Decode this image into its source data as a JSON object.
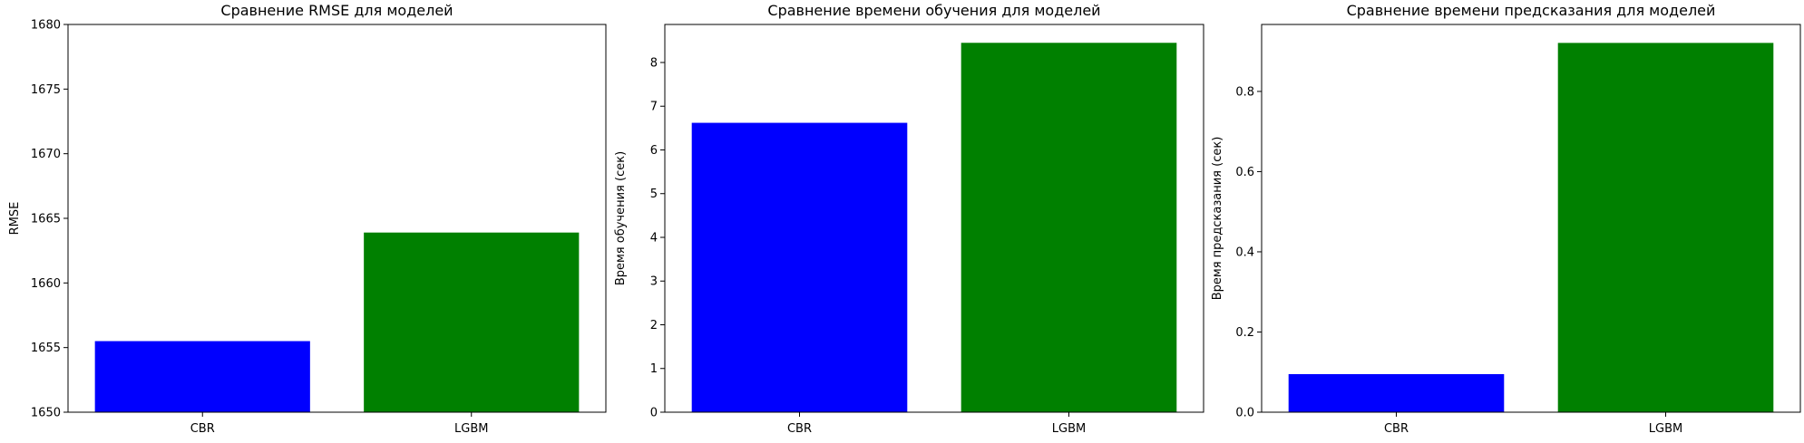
{
  "chart_data": [
    {
      "type": "bar",
      "title": "Сравнение RMSE для моделей",
      "xlabel": "",
      "ylabel": "RMSE",
      "categories": [
        "CBR",
        "LGBM"
      ],
      "values": [
        1655.5,
        1663.9
      ],
      "colors": [
        "#0000ff",
        "#008000"
      ],
      "ylim": [
        1650,
        1680
      ],
      "yticks": [
        1650,
        1655,
        1660,
        1665,
        1670,
        1675,
        1680
      ],
      "yticks_labels": [
        "1650",
        "1655",
        "1660",
        "1665",
        "1670",
        "1675",
        "1680"
      ],
      "grid": false
    },
    {
      "type": "bar",
      "title": "Сравнение времени обучения для моделей",
      "xlabel": "",
      "ylabel": "Время обучения (сек)",
      "categories": [
        "CBR",
        "LGBM"
      ],
      "values": [
        6.62,
        8.45
      ],
      "colors": [
        "#0000ff",
        "#008000"
      ],
      "ylim": [
        0,
        8.87
      ],
      "yticks": [
        0,
        1,
        2,
        3,
        4,
        5,
        6,
        7,
        8
      ],
      "yticks_labels": [
        "0",
        "1",
        "2",
        "3",
        "4",
        "5",
        "6",
        "7",
        "8"
      ],
      "grid": false
    },
    {
      "type": "bar",
      "title": "Сравнение времени предсказания для моделей",
      "xlabel": "",
      "ylabel": "Время предсказания (сек)",
      "categories": [
        "CBR",
        "LGBM"
      ],
      "values": [
        0.095,
        0.921
      ],
      "colors": [
        "#0000ff",
        "#008000"
      ],
      "ylim": [
        0,
        0.967
      ],
      "yticks": [
        0,
        0.2,
        0.4,
        0.6,
        0.8
      ],
      "yticks_labels": [
        "0.0",
        "0.2",
        "0.4",
        "0.6",
        "0.8"
      ],
      "grid": false
    }
  ]
}
